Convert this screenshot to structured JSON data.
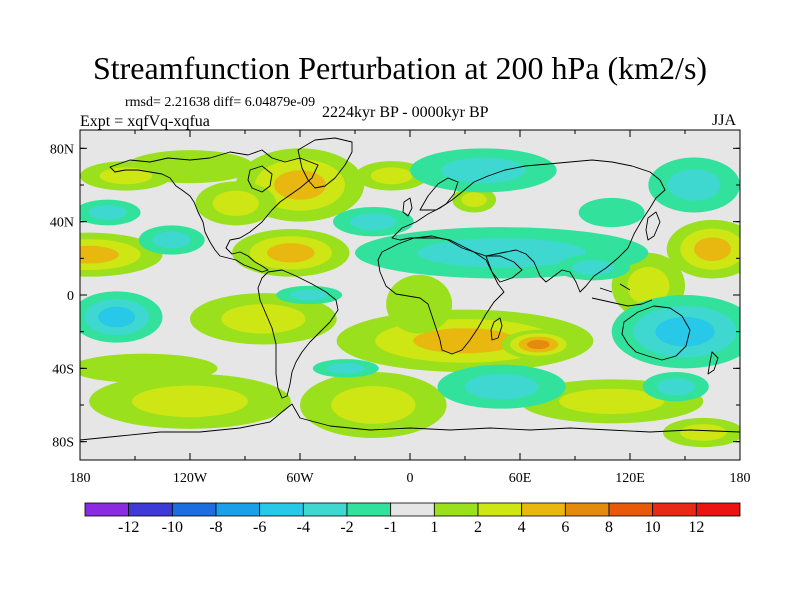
{
  "chart_data": {
    "type": "filled-contour-map",
    "title": "Streamfunction Perturbation at 200 hPa (km2/s)",
    "stats": "rmsd= 2.21638  diff= 6.04879e-09",
    "period": "2224kyr BP - 0000kyr BP",
    "experiment": "Expt = xqfVq-xqfua",
    "season": "JJA",
    "lon_range": [
      -180,
      180
    ],
    "lat_range": [
      -90,
      90
    ],
    "x_ticks": [
      {
        "value": -180,
        "label": "180"
      },
      {
        "value": -120,
        "label": "120W"
      },
      {
        "value": -60,
        "label": "60W"
      },
      {
        "value": 0,
        "label": "0"
      },
      {
        "value": 60,
        "label": "60E"
      },
      {
        "value": 120,
        "label": "120E"
      },
      {
        "value": 180,
        "label": "180"
      }
    ],
    "y_ticks": [
      {
        "value": 80,
        "label": "80N"
      },
      {
        "value": 40,
        "label": "40N"
      },
      {
        "value": 0,
        "label": "0"
      },
      {
        "value": -40,
        "label": "40S"
      },
      {
        "value": -80,
        "label": "80S"
      }
    ],
    "colorbar": {
      "labels": [
        "-12",
        "-10",
        "-8",
        "-6",
        "-4",
        "-2",
        "-1",
        "1",
        "2",
        "4",
        "6",
        "8",
        "10",
        "12"
      ],
      "colors": [
        "#8a2be2",
        "#3d3ad8",
        "#1c6ee0",
        "#1aa0e8",
        "#28c8e8",
        "#3ed8d0",
        "#32e29c",
        "#e6e6e6",
        "#9ae01c",
        "#cde614",
        "#e8b810",
        "#e48a0c",
        "#e85a08",
        "#e82a14",
        "#ea1410"
      ]
    },
    "anomalies": [
      {
        "lon": -175,
        "lat": 22,
        "rx": 40,
        "ry": 12,
        "v": 5
      },
      {
        "lon": -60,
        "lat": 60,
        "rx": 35,
        "ry": 20,
        "v": 5
      },
      {
        "lon": -95,
        "lat": 50,
        "rx": 22,
        "ry": 12,
        "v": 2.5
      },
      {
        "lon": -65,
        "lat": 23,
        "rx": 32,
        "ry": 13,
        "v": 5.5
      },
      {
        "lon": -120,
        "lat": 70,
        "rx": 35,
        "ry": 9,
        "v": 1.5
      },
      {
        "lon": -10,
        "lat": 65,
        "rx": 20,
        "ry": 8,
        "v": 3
      },
      {
        "lon": 35,
        "lat": 52,
        "rx": 12,
        "ry": 7,
        "v": 3.5
      },
      {
        "lon": 30,
        "lat": -25,
        "rx": 70,
        "ry": 17,
        "v": 5
      },
      {
        "lon": 70,
        "lat": -27,
        "rx": 20,
        "ry": 8,
        "v": 7
      },
      {
        "lon": -80,
        "lat": -13,
        "rx": 40,
        "ry": 14,
        "v": 2.5
      },
      {
        "lon": -145,
        "lat": -40,
        "rx": 40,
        "ry": 8,
        "v": 1.5
      },
      {
        "lon": -120,
        "lat": -58,
        "rx": 55,
        "ry": 15,
        "v": 2.5
      },
      {
        "lon": -20,
        "lat": -60,
        "rx": 40,
        "ry": 18,
        "v": 3
      },
      {
        "lon": 110,
        "lat": -58,
        "rx": 50,
        "ry": 12,
        "v": 2
      },
      {
        "lon": 130,
        "lat": 5,
        "rx": 20,
        "ry": 18,
        "v": 2
      },
      {
        "lon": 165,
        "lat": 25,
        "rx": 25,
        "ry": 16,
        "v": 4.5
      },
      {
        "lon": -155,
        "lat": 65,
        "rx": 25,
        "ry": 8,
        "v": 2
      },
      {
        "lon": 160,
        "lat": -75,
        "rx": 22,
        "ry": 8,
        "v": 2
      },
      {
        "lon": 5,
        "lat": -5,
        "rx": 18,
        "ry": 16,
        "v": 1.5
      },
      {
        "lon": 40,
        "lat": 68,
        "rx": 40,
        "ry": 12,
        "v": -2.5
      },
      {
        "lon": 50,
        "lat": 23,
        "rx": 80,
        "ry": 14,
        "v": -3
      },
      {
        "lon": -160,
        "lat": -12,
        "rx": 25,
        "ry": 14,
        "v": -5
      },
      {
        "lon": -165,
        "lat": 45,
        "rx": 18,
        "ry": 7,
        "v": -2
      },
      {
        "lon": -55,
        "lat": 0,
        "rx": 18,
        "ry": 5,
        "v": -2.5
      },
      {
        "lon": -20,
        "lat": 40,
        "rx": 22,
        "ry": 8,
        "v": -2
      },
      {
        "lon": 150,
        "lat": -20,
        "rx": 40,
        "ry": 20,
        "v": -4
      },
      {
        "lon": 155,
        "lat": 60,
        "rx": 25,
        "ry": 15,
        "v": -2
      },
      {
        "lon": 50,
        "lat": -50,
        "rx": 35,
        "ry": 12,
        "v": -3
      },
      {
        "lon": -35,
        "lat": -40,
        "rx": 18,
        "ry": 5,
        "v": -2
      },
      {
        "lon": 110,
        "lat": 45,
        "rx": 18,
        "ry": 8,
        "v": -1.5
      },
      {
        "lon": 100,
        "lat": 15,
        "rx": 20,
        "ry": 7,
        "v": -2.5
      },
      {
        "lon": 145,
        "lat": -50,
        "rx": 18,
        "ry": 8,
        "v": -2
      },
      {
        "lon": -130,
        "lat": 30,
        "rx": 18,
        "ry": 8,
        "v": -2
      }
    ]
  }
}
